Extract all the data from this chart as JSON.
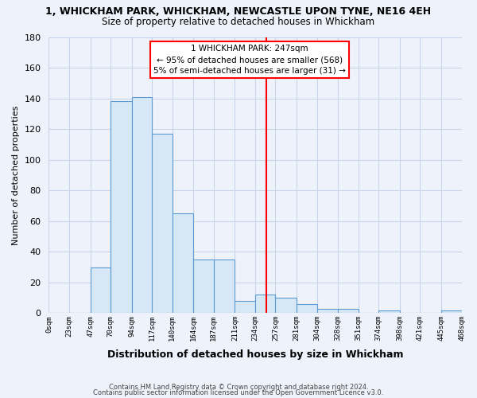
{
  "title": "1, WHICKHAM PARK, WHICKHAM, NEWCASTLE UPON TYNE, NE16 4EH",
  "subtitle": "Size of property relative to detached houses in Whickham",
  "xlabel": "Distribution of detached houses by size in Whickham",
  "ylabel": "Number of detached properties",
  "bar_color": "#d6e8f5",
  "bar_edge_color": "#5b9bd5",
  "bin_edges": [
    0,
    23,
    47,
    70,
    94,
    117,
    140,
    164,
    187,
    211,
    234,
    257,
    281,
    304,
    328,
    351,
    374,
    398,
    421,
    445,
    468
  ],
  "bin_labels": [
    "0sqm",
    "23sqm",
    "47sqm",
    "70sqm",
    "94sqm",
    "117sqm",
    "140sqm",
    "164sqm",
    "187sqm",
    "211sqm",
    "234sqm",
    "257sqm",
    "281sqm",
    "304sqm",
    "328sqm",
    "351sqm",
    "374sqm",
    "398sqm",
    "421sqm",
    "445sqm",
    "468sqm"
  ],
  "counts": [
    0,
    0,
    30,
    138,
    141,
    117,
    65,
    35,
    35,
    8,
    12,
    10,
    6,
    3,
    3,
    0,
    2,
    0,
    0,
    2
  ],
  "vline_x": 247,
  "vline_color": "red",
  "annotation_title": "1 WHICKHAM PARK: 247sqm",
  "annotation_line1": "← 95% of detached houses are smaller (568)",
  "annotation_line2": "5% of semi-detached houses are larger (31) →",
  "ylim": [
    0,
    180
  ],
  "yticks": [
    0,
    20,
    40,
    60,
    80,
    100,
    120,
    140,
    160,
    180
  ],
  "footer1": "Contains HM Land Registry data © Crown copyright and database right 2024.",
  "footer2": "Contains public sector information licensed under the Open Government Licence v3.0.",
  "bg_color": "#eef2fb",
  "grid_color": "#c8d4e8"
}
